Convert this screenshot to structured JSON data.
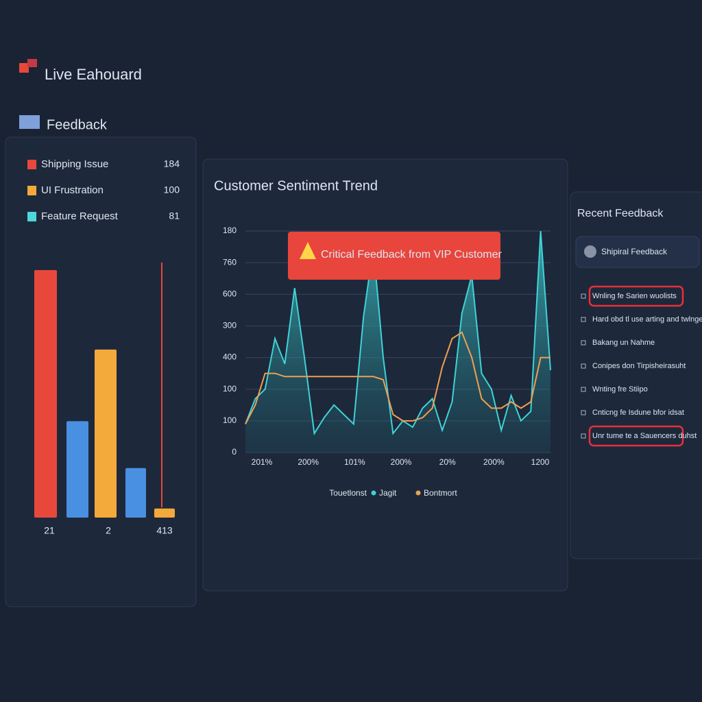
{
  "header": {
    "title": "Live Eahouard"
  },
  "section_title": "Feedback",
  "categories_panel": {
    "items": [
      {
        "label": "Shipping Issue",
        "count": 184,
        "color": "#e8483b"
      },
      {
        "label": "UI Frustration",
        "count": 100,
        "color": "#f4a93b"
      },
      {
        "label": "Feature Request",
        "count": 81,
        "color": "#4fd6dc"
      }
    ],
    "chart": {
      "type": "bar",
      "ylim": [
        0,
        400
      ],
      "values": [
        380,
        148,
        258,
        76,
        14
      ],
      "colors": [
        "#e8483b",
        "#4a90e2",
        "#f4a93b",
        "#4a90e2",
        "#f4a93b"
      ],
      "x_labels": [
        "21",
        "2",
        "413"
      ]
    }
  },
  "trend": {
    "title": "Customer Sentiment Trend",
    "alert": "Critical Feedback from VIP Customer",
    "chart": {
      "type": "line",
      "ylim": [
        0,
        700
      ],
      "y_labels": [
        "180",
        "760",
        "600",
        "300",
        "400",
        "100",
        "100",
        "0"
      ],
      "x_labels": [
        "201%",
        "200%",
        "101%",
        "200%",
        "20%",
        "200%",
        "1200"
      ],
      "legend_title": "Touetlonst",
      "series": [
        {
          "name": "Jagit",
          "color": "#3fd3d6",
          "values": [
            90,
            170,
            200,
            360,
            280,
            520,
            300,
            60,
            110,
            150,
            120,
            90,
            430,
            650,
            300,
            60,
            100,
            80,
            140,
            170,
            70,
            160,
            440,
            560,
            250,
            200,
            70,
            180,
            100,
            130,
            700,
            260
          ]
        },
        {
          "name": "Bontmort",
          "color": "#f0a050",
          "values": [
            90,
            150,
            250,
            250,
            240,
            240,
            240,
            240,
            240,
            240,
            240,
            240,
            240,
            240,
            230,
            120,
            100,
            100,
            110,
            140,
            270,
            360,
            380,
            300,
            170,
            140,
            140,
            160,
            140,
            160,
            300,
            300
          ]
        }
      ]
    }
  },
  "recent": {
    "title": "Recent Feedback",
    "search": "Shipiral Feedback",
    "items": [
      {
        "text": "Wnling fe Sarien wuolists",
        "highlighted": true
      },
      {
        "text": "Hard obd tl use arting and twlnge",
        "highlighted": false
      },
      {
        "text": "Bakang un Nahme",
        "highlighted": false
      },
      {
        "text": "Conipes don Tirpisheirasuht",
        "highlighted": false
      },
      {
        "text": "Wnting fre Stiipo",
        "highlighted": false
      },
      {
        "text": "Cnticng fe Isdune bfor idsat",
        "highlighted": false
      },
      {
        "text": "Unr tume te a Sauencers duhst",
        "highlighted": true
      }
    ]
  }
}
